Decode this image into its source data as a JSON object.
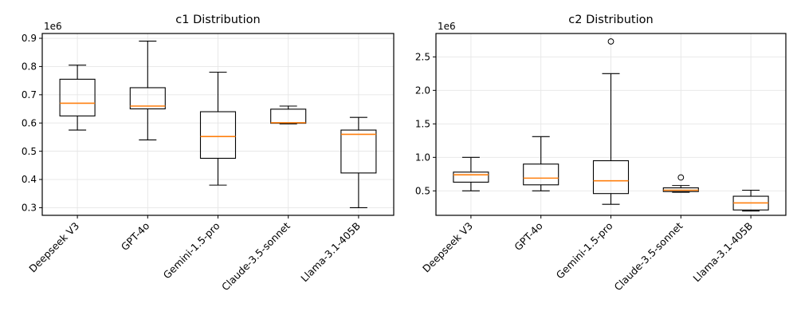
{
  "figure": {
    "background": "#ffffff",
    "colors": {
      "box_edge": "#000000",
      "median": "#ff7f0e",
      "grid": "#e6e6e6",
      "spine": "#000000",
      "text": "#000000"
    }
  },
  "chart_data": [
    {
      "type": "boxplot",
      "title": "c1 Distribution",
      "offset_label": "1e6",
      "categories": [
        "Deepseek V3",
        "GPT-4o",
        "Gemini-1.5-pro",
        "Claude-3.5-sonnet",
        "Llama-3.1-405B"
      ],
      "ytick_labels": [
        "0.3",
        "0.4",
        "0.5",
        "0.6",
        "0.7",
        "0.8",
        "0.9"
      ],
      "ylim": [
        0.273,
        0.917
      ],
      "grid": true,
      "boxes": [
        {
          "label": "Deepseek V3",
          "whislo": 0.575,
          "q1": 0.625,
          "med": 0.67,
          "q3": 0.755,
          "whishi": 0.805,
          "fliers": []
        },
        {
          "label": "GPT-4o",
          "whislo": 0.54,
          "q1": 0.65,
          "med": 0.66,
          "q3": 0.725,
          "whishi": 0.89,
          "fliers": []
        },
        {
          "label": "Gemini-1.5-pro",
          "whislo": 0.38,
          "q1": 0.475,
          "med": 0.552,
          "q3": 0.64,
          "whishi": 0.78,
          "fliers": []
        },
        {
          "label": "Claude-3.5-sonnet",
          "whislo": 0.597,
          "q1": 0.599,
          "med": 0.601,
          "q3": 0.649,
          "whishi": 0.66,
          "fliers": []
        },
        {
          "label": "Llama-3.1-405B",
          "whislo": 0.3,
          "q1": 0.423,
          "med": 0.56,
          "q3": 0.575,
          "whishi": 0.62,
          "fliers": []
        }
      ]
    },
    {
      "type": "boxplot",
      "title": "c2 Distribution",
      "offset_label": "1e6",
      "categories": [
        "Deepseek V3",
        "GPT-4o",
        "Gemini-1.5-pro",
        "Claude-3.5-sonnet",
        "Llama-3.1-405B"
      ],
      "ytick_labels": [
        "0.5",
        "1.0",
        "1.5",
        "2.0",
        "2.5"
      ],
      "ylim": [
        0.135,
        2.849
      ],
      "grid": true,
      "boxes": [
        {
          "label": "Deepseek V3",
          "whislo": 0.5,
          "q1": 0.63,
          "med": 0.74,
          "q3": 0.78,
          "whishi": 1.0,
          "fliers": []
        },
        {
          "label": "GPT-4o",
          "whislo": 0.5,
          "q1": 0.59,
          "med": 0.69,
          "q3": 0.9,
          "whishi": 1.31,
          "fliers": []
        },
        {
          "label": "Gemini-1.5-pro",
          "whislo": 0.3,
          "q1": 0.46,
          "med": 0.65,
          "q3": 0.95,
          "whishi": 2.25,
          "fliers": [
            2.73
          ]
        },
        {
          "label": "Claude-3.5-sonnet",
          "whislo": 0.48,
          "q1": 0.49,
          "med": 0.51,
          "q3": 0.545,
          "whishi": 0.58,
          "fliers": [
            0.7
          ]
        },
        {
          "label": "Llama-3.1-405B",
          "whislo": 0.2,
          "q1": 0.215,
          "med": 0.32,
          "q3": 0.42,
          "whishi": 0.51,
          "fliers": []
        }
      ]
    }
  ]
}
